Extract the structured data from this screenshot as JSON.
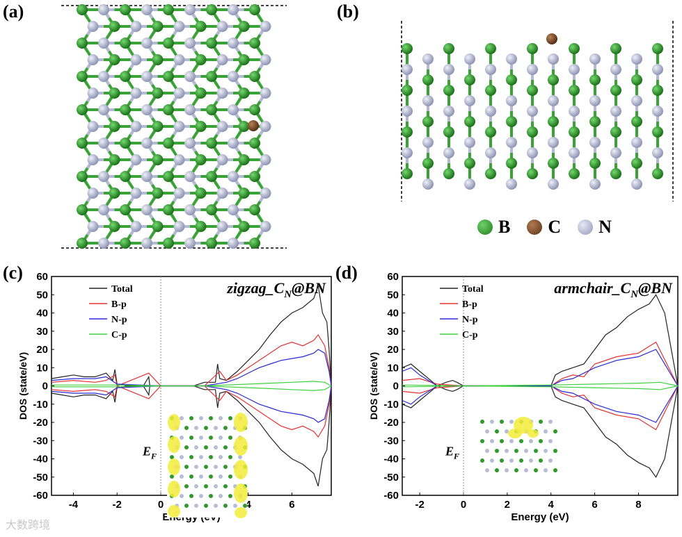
{
  "panels": {
    "a": "(a)",
    "b": "(b)",
    "c": "(c)",
    "d": "(d)"
  },
  "legend": [
    {
      "symbol": "B",
      "color": "#2e9a2a"
    },
    {
      "symbol": "C",
      "color": "#7a4a2a"
    },
    {
      "symbol": "N",
      "color": "#b8bcd6"
    }
  ],
  "colors": {
    "boron": "#2e9a2a",
    "carbon": "#7a4a2a",
    "nitrogen": "#b8bcd6",
    "total": "#222222",
    "bp": "#e53030",
    "np": "#2828d8",
    "cp": "#3ed03e"
  },
  "chart_data": [
    {
      "type": "line",
      "title": "zigzag_C_N@BN",
      "title_main": "zigzag_C",
      "title_sub": "N",
      "title_tail": "@BN",
      "xlabel": "Energy (eV)",
      "ylabel": "DOS (state/eV)",
      "xlim": [
        -5,
        7.8
      ],
      "ylim": [
        -60,
        60
      ],
      "xticks": [
        -4,
        -2,
        0,
        2,
        4,
        6
      ],
      "yticks": [
        -60,
        -50,
        -40,
        -30,
        -20,
        -10,
        0,
        10,
        20,
        30,
        40,
        50,
        60
      ],
      "fermi_label": "E",
      "fermi_sub": "F",
      "fermi_level": 0,
      "legend": [
        "Total",
        "B-p",
        "N-p",
        "C-p"
      ],
      "series": [
        {
          "name": "Total",
          "x": [
            -5,
            -4.5,
            -4,
            -3.5,
            -3,
            -2.5,
            -2.2,
            -2.1,
            -2,
            -1.5,
            -0.8,
            -0.55,
            -0.5,
            0,
            0.5,
            1,
            1.5,
            2,
            2.5,
            2.6,
            2.7,
            3,
            3.5,
            4,
            4.5,
            5,
            5.5,
            6,
            6.5,
            7,
            7.2,
            7.4,
            7.6,
            7.7,
            7.8
          ],
          "values": [
            4,
            5,
            6,
            5,
            5,
            7,
            3,
            9,
            1,
            0,
            0,
            5,
            0,
            0,
            0,
            0,
            0,
            2,
            2,
            12,
            4,
            3,
            8,
            14,
            20,
            28,
            35,
            40,
            43,
            48,
            55,
            40,
            35,
            20,
            0
          ]
        },
        {
          "name": "B-p",
          "x": [
            -5,
            -4,
            -3,
            -2.5,
            -2.1,
            -2,
            -0.55,
            0,
            2,
            2.7,
            3,
            3.5,
            4,
            4.5,
            5,
            5.5,
            6,
            6.5,
            7,
            7.2,
            7.5,
            7.7,
            7.8
          ],
          "values": [
            2,
            3,
            2,
            3,
            6,
            0,
            7,
            0,
            0,
            8,
            3,
            6,
            10,
            14,
            18,
            22,
            24,
            22,
            25,
            28,
            22,
            10,
            0
          ]
        },
        {
          "name": "N-p",
          "x": [
            -5,
            -4,
            -3,
            -2.5,
            -2,
            0,
            2,
            3,
            3.5,
            4,
            4.5,
            5,
            5.5,
            6,
            6.5,
            7,
            7.2,
            7.5,
            7.7,
            7.8
          ],
          "values": [
            3,
            4,
            4,
            5,
            1,
            0,
            0,
            2,
            4,
            7,
            10,
            12,
            14,
            15,
            16,
            18,
            20,
            18,
            8,
            0
          ]
        },
        {
          "name": "C-p",
          "x": [
            -5,
            -2,
            0,
            2,
            3,
            4,
            5,
            6,
            7,
            7.5,
            7.8
          ],
          "values": [
            0.5,
            0.5,
            0,
            0,
            0.5,
            1,
            1.5,
            2,
            2.5,
            2,
            0
          ]
        }
      ]
    },
    {
      "type": "line",
      "title": "armchair_C_N@BN",
      "title_main": "armchair_C",
      "title_sub": "N",
      "title_tail": "@BN",
      "xlabel": "Energy (eV)",
      "ylabel": "DOS (state/eV)",
      "xlim": [
        -2.8,
        9.8
      ],
      "ylim": [
        -60,
        60
      ],
      "xticks": [
        -2,
        0,
        2,
        4,
        6,
        8
      ],
      "yticks": [
        -60,
        -50,
        -40,
        -30,
        -20,
        -10,
        0,
        10,
        20,
        30,
        40,
        50,
        60
      ],
      "fermi_label": "E",
      "fermi_sub": "F",
      "fermi_level": 0,
      "legend": [
        "Total",
        "B-p",
        "N-p",
        "C-p"
      ],
      "series": [
        {
          "name": "Total",
          "x": [
            -2.8,
            -2.4,
            -2,
            -1.5,
            -1.2,
            -0.8,
            -0.5,
            -0.3,
            0,
            2,
            4,
            4.2,
            4.5,
            5,
            5.5,
            6,
            6.5,
            7,
            7.5,
            8,
            8.5,
            8.8,
            9.2,
            9.5,
            9.8
          ],
          "values": [
            10,
            12,
            8,
            3,
            0,
            2,
            3,
            2,
            0,
            0,
            0,
            6,
            8,
            10,
            12,
            20,
            28,
            32,
            38,
            42,
            45,
            50,
            40,
            20,
            0
          ]
        },
        {
          "name": "B-p",
          "x": [
            -2.8,
            -2,
            -1.2,
            0,
            4,
            4.5,
            5,
            5.5,
            6,
            7,
            8,
            8.8,
            9.3,
            9.8
          ],
          "values": [
            3,
            4,
            1,
            0,
            0,
            4,
            6,
            5,
            12,
            16,
            18,
            24,
            12,
            0
          ]
        },
        {
          "name": "N-p",
          "x": [
            -2.8,
            -2.4,
            -2,
            -1.2,
            0,
            4,
            4.5,
            5,
            6,
            7,
            8,
            8.8,
            9.3,
            9.8
          ],
          "values": [
            8,
            10,
            6,
            0,
            0,
            0,
            3,
            4,
            10,
            14,
            16,
            20,
            10,
            0
          ]
        },
        {
          "name": "C-p",
          "x": [
            -2.8,
            0,
            4,
            6,
            8,
            9,
            9.8
          ],
          "values": [
            0.5,
            0,
            0.5,
            1,
            1.5,
            2,
            0
          ]
        }
      ]
    }
  ],
  "watermark": "大数跨境"
}
